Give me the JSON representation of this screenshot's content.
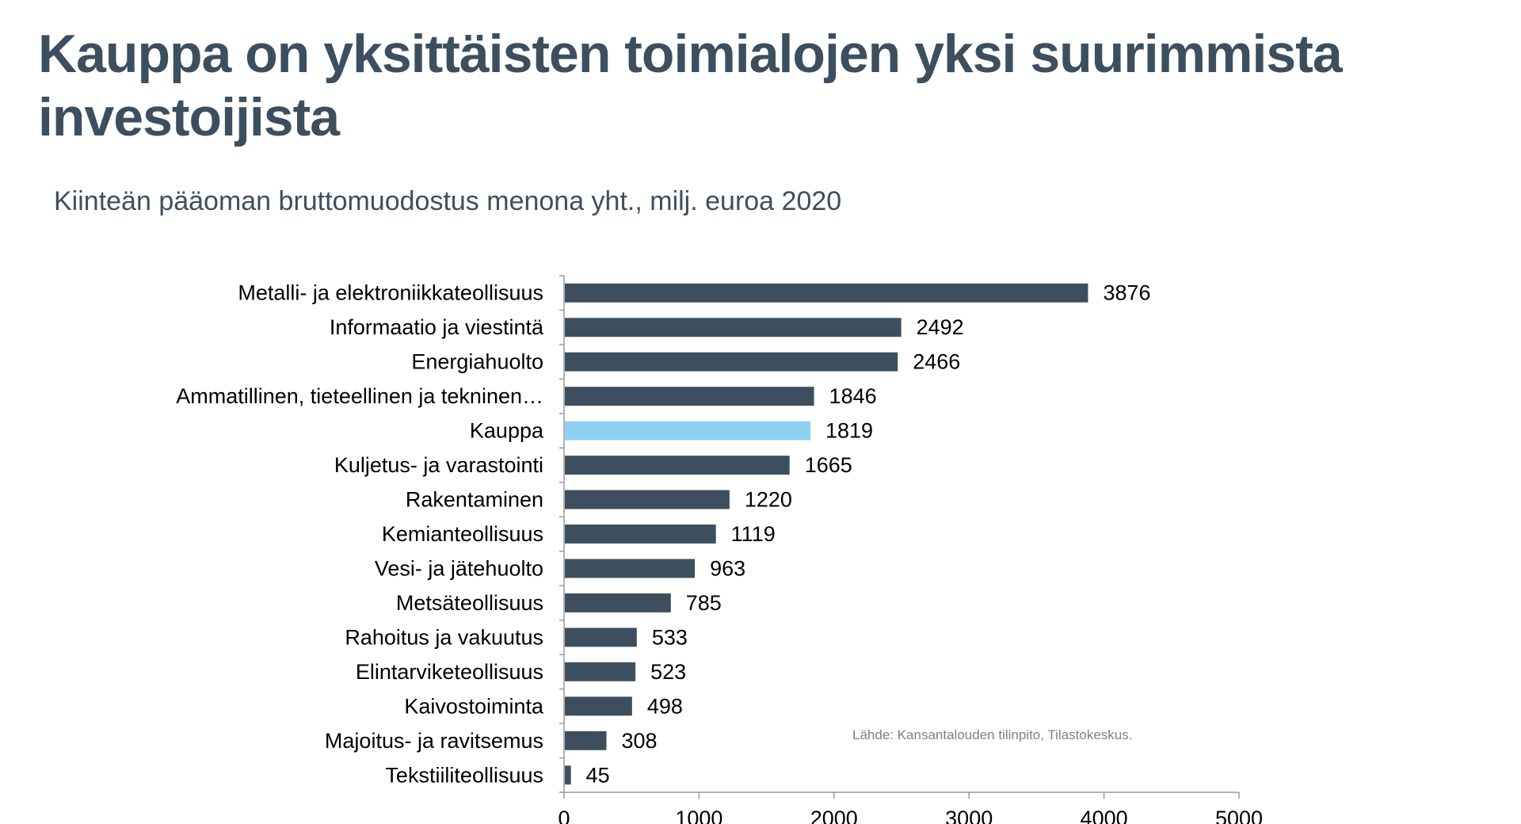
{
  "title": "Kauppa on yksittäisten toimialojen yksi suurimmista investoijista",
  "subtitle": "Kiinteän pääoman bruttomuodostus menona yht., milj. euroa 2020",
  "source": "Lähde: Kansantalouden tilinpito, Tilastokeskus.",
  "colors": {
    "bar": "#3d4f5e",
    "highlight": "#8fd0f2",
    "title": "#3c4f5f",
    "axis": "#999999"
  },
  "chart_data": {
    "type": "bar",
    "orientation": "horizontal",
    "categories": [
      "Metalli- ja elektroniikkateollisuus",
      "Informaatio ja viestintä",
      "Energiahuolto",
      "Ammatillinen, tieteellinen ja tekninen…",
      "Kauppa",
      "Kuljetus- ja varastointi",
      "Rakentaminen",
      "Kemianteollisuus",
      "Vesi- ja jätehuolto",
      "Metsäteollisuus",
      "Rahoitus ja vakuutus",
      "Elintarviketeollisuus",
      "Kaivostoiminta",
      "Majoitus- ja ravitsemus",
      "Tekstiiliteollisuus"
    ],
    "values": [
      3876,
      2492,
      2466,
      1846,
      1819,
      1665,
      1220,
      1119,
      963,
      785,
      533,
      523,
      498,
      308,
      45
    ],
    "highlight_category": "Kauppa",
    "xlim": [
      0,
      5000
    ],
    "xticks": [
      0,
      1000,
      2000,
      3000,
      4000,
      5000
    ],
    "data_labels": true,
    "grid": false,
    "legend": "none"
  }
}
